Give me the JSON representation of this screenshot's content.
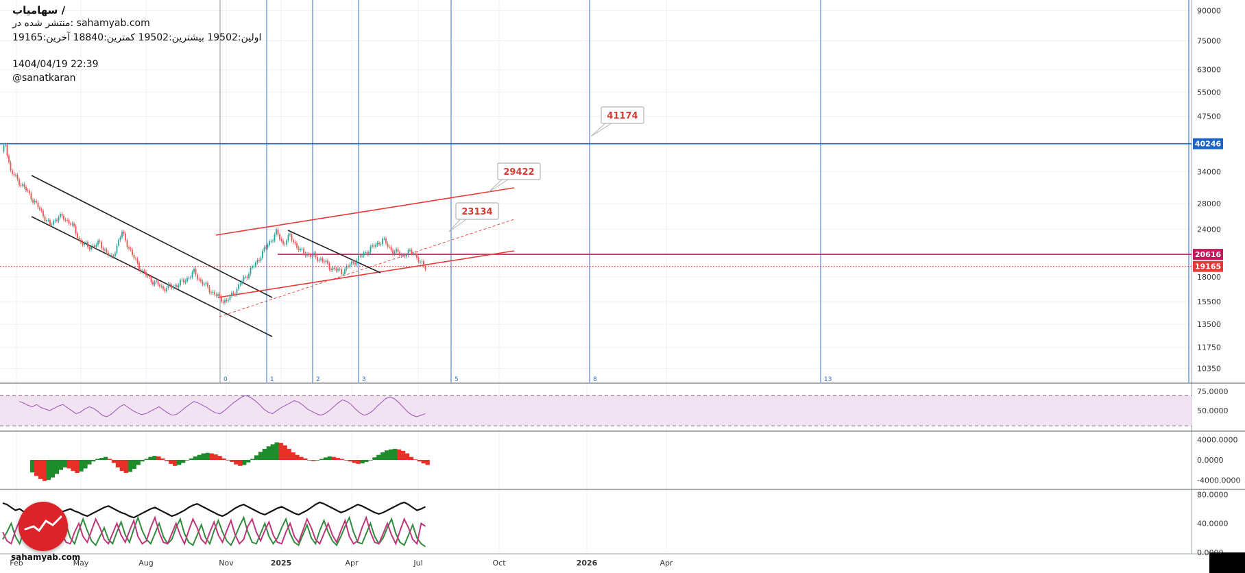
{
  "header": {
    "title": "سهامیاب /",
    "published": "منتشر شده در: sahamyab.com",
    "ohlc": "اولین:19502  بیشترین:19502  کمترین:18840  آخرین:19165",
    "datetime": "1404/04/19 22:39",
    "author": "@sanatkaran"
  },
  "watermark": {
    "logo_name": "sahamyab-logo",
    "site": "sahamyab.com"
  },
  "chart_data": {
    "type": "candlestick",
    "scale": "log",
    "x_ticks": [
      "Feb",
      "May",
      "Aug",
      "Nov",
      "2025",
      "Apr",
      "Jul",
      "Oct",
      "2026",
      "Apr"
    ],
    "y_ticks": [
      90000,
      75000,
      63000,
      55000,
      47500,
      40246,
      34000,
      28000,
      24000,
      20616,
      19165,
      18000,
      15500,
      13500,
      11750,
      10350
    ],
    "ylim": [
      9500,
      96000
    ],
    "last_price": 19165,
    "price_path": [
      [
        0,
        38000
      ],
      [
        2,
        40246
      ],
      [
        5,
        34000
      ],
      [
        10,
        32000
      ],
      [
        15,
        30000
      ],
      [
        22,
        27000
      ],
      [
        28,
        24500
      ],
      [
        33,
        26000
      ],
      [
        40,
        25000
      ],
      [
        45,
        22500
      ],
      [
        50,
        21500
      ],
      [
        57,
        22000
      ],
      [
        64,
        20000
      ],
      [
        70,
        23500
      ],
      [
        76,
        20500
      ],
      [
        82,
        18500
      ],
      [
        88,
        17500
      ],
      [
        94,
        16800
      ],
      [
        100,
        17000
      ],
      [
        106,
        17500
      ],
      [
        112,
        18500
      ],
      [
        116,
        17500
      ],
      [
        122,
        16500
      ],
      [
        127,
        15800
      ],
      [
        131,
        15500
      ],
      [
        136,
        16500
      ],
      [
        142,
        18000
      ],
      [
        148,
        19500
      ],
      [
        154,
        21500
      ],
      [
        160,
        23500
      ],
      [
        164,
        22000
      ],
      [
        168,
        23000
      ],
      [
        174,
        21000
      ],
      [
        180,
        20500
      ],
      [
        186,
        20000
      ],
      [
        192,
        19000
      ],
      [
        198,
        18500
      ],
      [
        204,
        19500
      ],
      [
        210,
        20500
      ],
      [
        216,
        21500
      ],
      [
        222,
        22500
      ],
      [
        228,
        21000
      ],
      [
        234,
        20500
      ],
      [
        240,
        21000
      ],
      [
        244,
        19500
      ],
      [
        247,
        19165
      ]
    ],
    "horizontal_levels": [
      {
        "label": "40246",
        "value": 40246,
        "color": "#1e63c8"
      },
      {
        "label": "20616",
        "value": 20616,
        "color": "#c2185b"
      },
      {
        "label": "19165",
        "value": 19165,
        "color": "#e53935"
      }
    ],
    "annotations": [
      {
        "label": "41174",
        "value": 41174
      },
      {
        "label": "29422",
        "value": 29422
      },
      {
        "label": "23134",
        "value": 23134
      }
    ],
    "vertical_line_counts": [
      "0",
      "1",
      "2",
      "3",
      "5",
      "8",
      "13"
    ],
    "rsi": {
      "ylim": [
        25,
        85
      ],
      "ticks": [
        "75.0000",
        "50.0000"
      ],
      "band": [
        30,
        70
      ],
      "values": [
        62,
        60,
        57,
        55,
        58,
        54,
        52,
        50,
        53,
        56,
        58,
        54,
        50,
        46,
        48,
        52,
        55,
        53,
        49,
        44,
        42,
        45,
        50,
        55,
        58,
        54,
        50,
        47,
        45,
        46,
        49,
        52,
        55,
        51,
        47,
        44,
        45,
        49,
        54,
        58,
        62,
        60,
        57,
        54,
        50,
        47,
        46,
        50,
        55,
        60,
        64,
        68,
        70,
        67,
        63,
        58,
        52,
        48,
        46,
        50,
        54,
        57,
        60,
        63,
        61,
        57,
        52,
        49,
        46,
        44,
        46,
        50,
        55,
        60,
        64,
        62,
        58,
        52,
        47,
        44,
        46,
        50,
        56,
        61,
        66,
        68,
        65,
        60,
        54,
        48,
        44,
        42,
        44,
        46
      ]
    },
    "macd": {
      "ylim": [
        -5600,
        5600
      ],
      "ticks": [
        "4000.0000",
        "0.0000",
        "-4000.0000"
      ],
      "values": [
        -2500,
        -3200,
        -3800,
        -4200,
        -4000,
        -3500,
        -2800,
        -2000,
        -1500,
        -1700,
        -2200,
        -2600,
        -2300,
        -1700,
        -900,
        -300,
        200,
        400,
        600,
        200,
        -600,
        -1500,
        -2200,
        -2600,
        -2400,
        -1800,
        -1000,
        -300,
        200,
        600,
        800,
        700,
        300,
        -200,
        -800,
        -1200,
        -1000,
        -600,
        -100,
        300,
        700,
        1000,
        1300,
        1400,
        1300,
        1100,
        800,
        300,
        0,
        -400,
        -900,
        -1200,
        -1000,
        -500,
        200,
        900,
        1600,
        2200,
        2700,
        3100,
        3500,
        3400,
        2900,
        2200,
        1500,
        1000,
        600,
        300,
        0,
        -200,
        -100,
        200,
        500,
        700,
        600,
        400,
        200,
        0,
        -300,
        -600,
        -800,
        -700,
        -400,
        0,
        500,
        1000,
        1500,
        1900,
        2100,
        2200,
        2100,
        1800,
        1300,
        600,
        100,
        -300,
        -700,
        -1000
      ]
    },
    "adx": {
      "ylim": [
        0,
        85
      ],
      "ticks": [
        "80.0000",
        "40.0000",
        "0.0000"
      ],
      "series": [
        {
          "color": "#111111",
          "values": [
            68,
            66,
            62,
            58,
            60,
            56,
            52,
            55,
            58,
            54,
            50,
            47,
            50,
            53,
            56,
            58,
            60,
            57,
            55,
            52,
            50,
            53,
            56,
            59,
            62,
            64,
            61,
            58,
            55,
            53,
            50,
            48,
            51,
            54,
            57,
            60,
            62,
            59,
            56,
            53,
            50,
            52,
            55,
            58,
            62,
            65,
            67,
            64,
            61,
            58,
            55,
            52,
            50,
            53,
            57,
            61,
            64,
            66,
            63,
            60,
            57,
            54,
            52,
            55,
            58,
            61,
            63,
            60,
            57,
            54,
            52,
            55,
            58,
            62,
            66,
            69,
            67,
            64,
            61,
            58,
            55,
            57,
            60,
            63,
            66,
            64,
            61,
            58,
            55,
            53,
            55,
            58,
            61,
            64,
            67,
            69,
            66,
            62,
            58,
            60,
            63
          ]
        },
        {
          "color": "#2e8b3c",
          "values": [
            18,
            28,
            40,
            22,
            12,
            30,
            44,
            28,
            15,
            20,
            35,
            26,
            14,
            10,
            25,
            38,
            20,
            12,
            30,
            46,
            30,
            16,
            10,
            22,
            34,
            18,
            12,
            28,
            42,
            24,
            14,
            32,
            48,
            30,
            18,
            12,
            26,
            40,
            22,
            12,
            18,
            34,
            46,
            26,
            14,
            10,
            24,
            38,
            20,
            12,
            30,
            44,
            28,
            16,
            10,
            22,
            36,
            48,
            28,
            14,
            12,
            26,
            40,
            22,
            12,
            20,
            34,
            46,
            26,
            14,
            10,
            24,
            38,
            20,
            12,
            30,
            44,
            28,
            16,
            10,
            22,
            36,
            48,
            28,
            14,
            12,
            26,
            40,
            22,
            12,
            20,
            34,
            46,
            26,
            14,
            10,
            24,
            38,
            20,
            12,
            8
          ]
        },
        {
          "color": "#c0357a",
          "values": [
            28,
            16,
            12,
            30,
            44,
            24,
            12,
            18,
            36,
            46,
            28,
            16,
            30,
            42,
            24,
            14,
            12,
            28,
            40,
            22,
            14,
            30,
            46,
            34,
            18,
            12,
            26,
            40,
            24,
            14,
            30,
            44,
            22,
            12,
            16,
            34,
            48,
            28,
            14,
            12,
            26,
            40,
            24,
            12,
            30,
            46,
            34,
            18,
            12,
            28,
            42,
            24,
            14,
            30,
            44,
            24,
            12,
            18,
            36,
            46,
            28,
            16,
            30,
            42,
            24,
            14,
            12,
            28,
            40,
            22,
            14,
            30,
            46,
            34,
            18,
            12,
            26,
            40,
            24,
            14,
            30,
            44,
            22,
            12,
            16,
            34,
            48,
            28,
            14,
            12,
            26,
            40,
            24,
            12,
            30,
            46,
            34,
            18,
            12,
            40,
            36
          ]
        }
      ]
    }
  }
}
